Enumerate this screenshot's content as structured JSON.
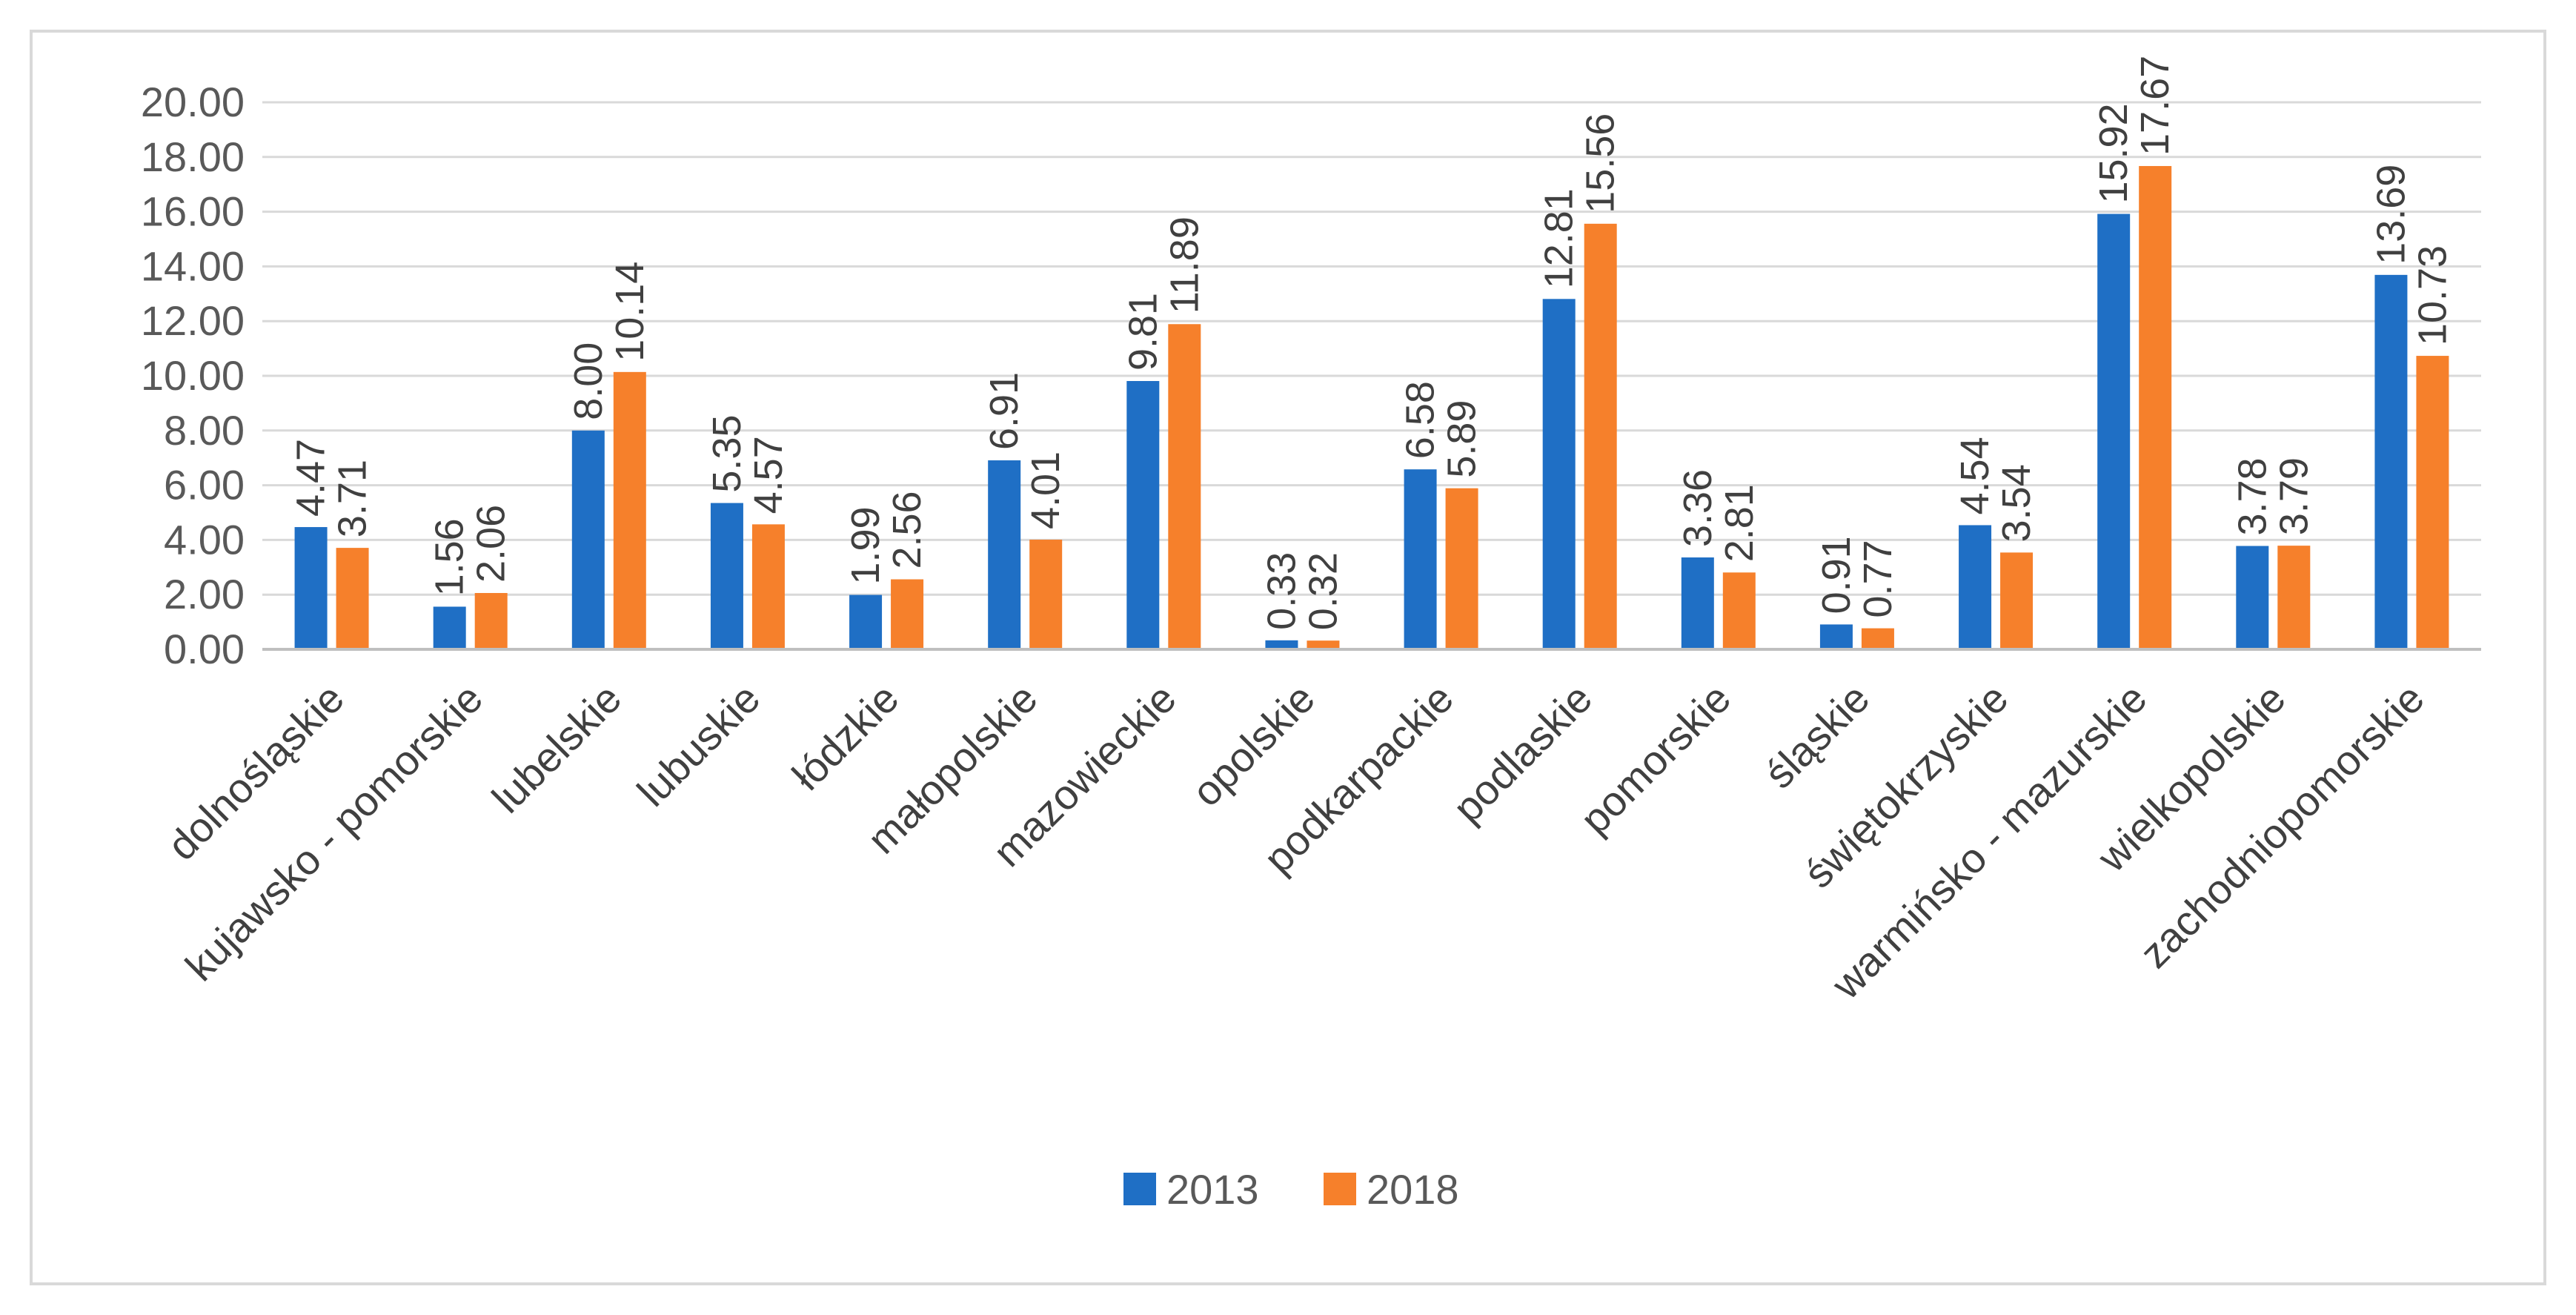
{
  "chart_data": {
    "type": "bar",
    "categories": [
      "dolnośląskie",
      "kujawsko - pomorskie",
      "lubelskie",
      "lubuskie",
      "łódzkie",
      "małopolskie",
      "mazowieckie",
      "opolskie",
      "podkarpackie",
      "podlaskie",
      "pomorskie",
      "śląskie",
      "świętokrzyskie",
      "warmińsko - mazurskie",
      "wielkopolskie",
      "zachodniopomorskie"
    ],
    "series": [
      {
        "name": "2013",
        "color": "#1f6fc5",
        "values": [
          4.47,
          1.56,
          8.0,
          5.35,
          1.99,
          6.91,
          9.81,
          0.33,
          6.58,
          12.81,
          3.36,
          0.91,
          4.54,
          15.92,
          3.78,
          13.69
        ],
        "labels": [
          "4.47",
          "1.56",
          "8.00",
          "5.35",
          "1.99",
          "6.91",
          "9.81",
          "0.33",
          "6.58",
          "12.81",
          "3.36",
          "0.91",
          "4.54",
          "15.92",
          "3.78",
          "13.69"
        ]
      },
      {
        "name": "2018",
        "color": "#f6802b",
        "values": [
          3.71,
          2.06,
          10.14,
          4.57,
          2.56,
          4.01,
          11.89,
          0.32,
          5.89,
          15.56,
          2.81,
          0.77,
          3.54,
          17.67,
          3.79,
          10.73
        ],
        "labels": [
          "3.71",
          "2.06",
          "10.14",
          "4.57",
          "2.56",
          "4.01",
          "11.89",
          "0.32",
          "5.89",
          "15.56",
          "2.81",
          "0.77",
          "3.54",
          "17.67",
          "3.79",
          "10.73"
        ]
      }
    ],
    "y_ticks": [
      "0.00",
      "2.00",
      "4.00",
      "6.00",
      "8.00",
      "10.00",
      "12.00",
      "14.00",
      "16.00",
      "18.00",
      "20.00"
    ],
    "ylim": [
      0,
      20
    ],
    "title": "",
    "xlabel": "",
    "ylabel": "",
    "grid": true,
    "legend_position": "bottom"
  }
}
